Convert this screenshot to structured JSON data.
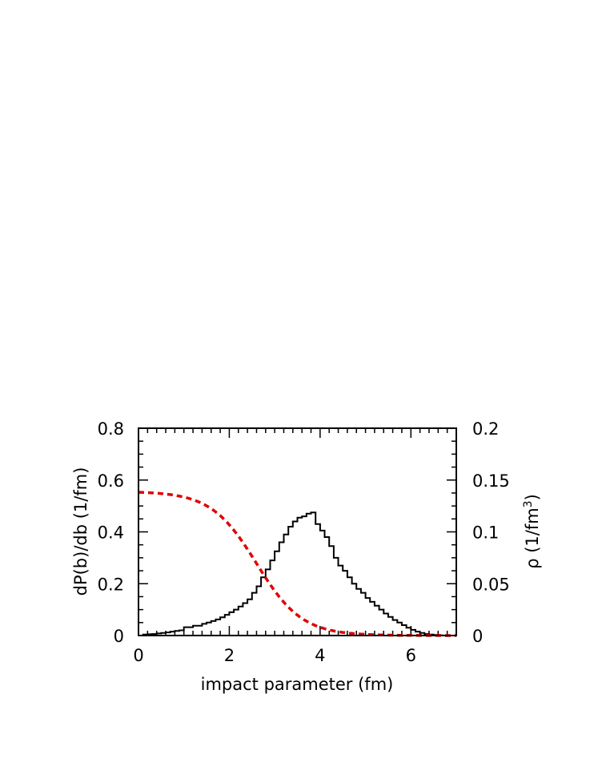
{
  "chart_data": {
    "type": "line",
    "xlabel": "impact parameter (fm)",
    "ylabel_left": "dP(b)/db  (1/fm)",
    "ylabel_right_main": "ρ (1/fm",
    "ylabel_right_sup": "3",
    "ylabel_right_close": ")",
    "xlim": [
      0,
      7
    ],
    "ylim_left": [
      0,
      0.8
    ],
    "ylim_right": [
      0,
      0.2
    ],
    "x_ticks": [
      "0",
      "2",
      "4",
      "6"
    ],
    "y_ticks_left": [
      "0",
      "0.2",
      "0.4",
      "0.6",
      "0.8"
    ],
    "y_ticks_right": [
      "0",
      "0.05",
      "0.1",
      "0.15",
      "0.2"
    ],
    "grid": false,
    "series": [
      {
        "style": "histogram",
        "axis": "left",
        "color": "#000000",
        "bin_width": 0.1,
        "x_start": 0.0,
        "values": [
          0.0,
          0.004,
          0.005,
          0.006,
          0.008,
          0.01,
          0.012,
          0.015,
          0.018,
          0.02,
          0.032,
          0.032,
          0.038,
          0.038,
          0.045,
          0.05,
          0.056,
          0.062,
          0.07,
          0.08,
          0.09,
          0.1,
          0.112,
          0.125,
          0.14,
          0.165,
          0.19,
          0.225,
          0.255,
          0.29,
          0.325,
          0.36,
          0.39,
          0.42,
          0.44,
          0.455,
          0.46,
          0.47,
          0.475,
          0.43,
          0.405,
          0.38,
          0.345,
          0.3,
          0.27,
          0.25,
          0.225,
          0.2,
          0.18,
          0.165,
          0.145,
          0.13,
          0.115,
          0.1,
          0.085,
          0.072,
          0.06,
          0.05,
          0.04,
          0.03,
          0.022,
          0.015,
          0.01,
          0.006,
          0.004,
          0.002,
          0.001,
          0.0,
          0.0,
          0.0
        ]
      },
      {
        "style": "dashed-curve",
        "axis": "right",
        "color": "#e00000",
        "function": "woods-saxon",
        "rho0": 0.139,
        "radius_fm": 2.6,
        "diffuseness_fm": 0.5
      }
    ]
  }
}
